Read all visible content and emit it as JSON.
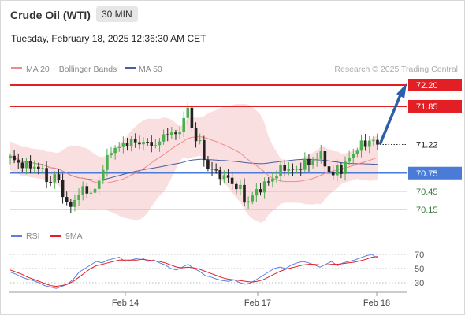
{
  "header": {
    "instrument": "Crude Oil (WTI)",
    "timeframe": "30 MIN",
    "datetime": "Tuesday, February 18, 2025 12:36:30 AM CET"
  },
  "legend": {
    "ma_bb": "MA 20 + Bollinger Bands",
    "ma50": "MA 50",
    "rsi": "RSI",
    "ma9": "9MA"
  },
  "copyright": "Research © 2025 Trading Central",
  "colors": {
    "up": "#4caf50",
    "down": "#222222",
    "bands": "#f8d9d9",
    "ma20": "#f08a8a",
    "ma50": "#4a5ea0",
    "resistance": "#e31e24",
    "pivot": "#4a7bd6",
    "support": "#9ccc9c",
    "arrow": "#2d5fa8",
    "rsi": "#5b7fe0",
    "rsi_ma": "#e31e24"
  },
  "chart_data": [
    {
      "type": "candlestick",
      "title": "Crude Oil (WTI)",
      "timeframe": "30 MIN",
      "ylim": [
        70.05,
        72.28
      ],
      "x_ticks": [
        "Feb 14",
        "Feb 17",
        "Feb 18"
      ],
      "levels": [
        {
          "value": 72.2,
          "label": "72.20",
          "role": "target"
        },
        {
          "value": 71.85,
          "label": "71.85",
          "role": "resistance"
        },
        {
          "value": 71.22,
          "label": "71.22",
          "role": "last"
        },
        {
          "value": 70.75,
          "label": "70.75",
          "role": "pivot"
        },
        {
          "value": 70.45,
          "label": "70.45",
          "role": "support"
        },
        {
          "value": 70.15,
          "label": "70.15",
          "role": "support"
        }
      ],
      "close_anchors": [
        71.0,
        70.93,
        70.9,
        70.85,
        70.88,
        70.82,
        70.75,
        70.55,
        70.78,
        70.45,
        70.15,
        70.3,
        70.38,
        70.55,
        70.38,
        70.5,
        70.8,
        71.0,
        71.2,
        71.15,
        71.25,
        71.28,
        71.22,
        71.3,
        71.2,
        71.25,
        71.22,
        71.45,
        71.4,
        71.35,
        71.6,
        71.8,
        71.35,
        71.25,
        70.9,
        70.8,
        70.75,
        70.7,
        70.65,
        70.55,
        70.5,
        70.25,
        70.35,
        70.45,
        70.55,
        70.6,
        70.7,
        70.8,
        70.85,
        70.8,
        70.78,
        70.95,
        70.88,
        71.0,
        71.05,
        70.9,
        70.65,
        70.85,
        70.8,
        71.0,
        71.1,
        71.2,
        71.25,
        71.3,
        71.22
      ],
      "series": [
        {
          "name": "MA 20 + Bollinger Bands",
          "kind": "ma20_with_bands"
        },
        {
          "name": "MA 50",
          "kind": "ma50"
        }
      ]
    },
    {
      "type": "line",
      "title": "RSI",
      "ylim": [
        20,
        75
      ],
      "y_ticks": [
        70,
        50,
        30
      ],
      "series": [
        {
          "name": "RSI",
          "values": [
            45,
            42,
            38,
            35,
            33,
            30,
            26,
            24,
            22,
            25,
            28,
            35,
            45,
            50,
            55,
            60,
            58,
            62,
            64,
            66,
            60,
            62,
            64,
            65,
            60,
            62,
            58,
            55,
            50,
            48,
            52,
            56,
            50,
            46,
            40,
            38,
            35,
            33,
            32,
            34,
            30,
            28,
            30,
            35,
            40,
            45,
            50,
            52,
            50,
            55,
            58,
            60,
            58,
            55,
            52,
            56,
            60,
            54,
            58,
            60,
            62,
            65,
            68,
            70,
            65
          ]
        },
        {
          "name": "9MA",
          "values": [
            48,
            45,
            42,
            38,
            35,
            32,
            29,
            26,
            25,
            26,
            28,
            32,
            38,
            44,
            50,
            54,
            56,
            58,
            60,
            62,
            62,
            62,
            62,
            63,
            62,
            61,
            60,
            58,
            55,
            52,
            51,
            52,
            51,
            49,
            46,
            43,
            40,
            37,
            35,
            34,
            33,
            32,
            31,
            32,
            34,
            38,
            42,
            46,
            49,
            51,
            53,
            55,
            56,
            56,
            55,
            55,
            56,
            56,
            57,
            58,
            59,
            61,
            63,
            66,
            67
          ]
        }
      ]
    }
  ]
}
